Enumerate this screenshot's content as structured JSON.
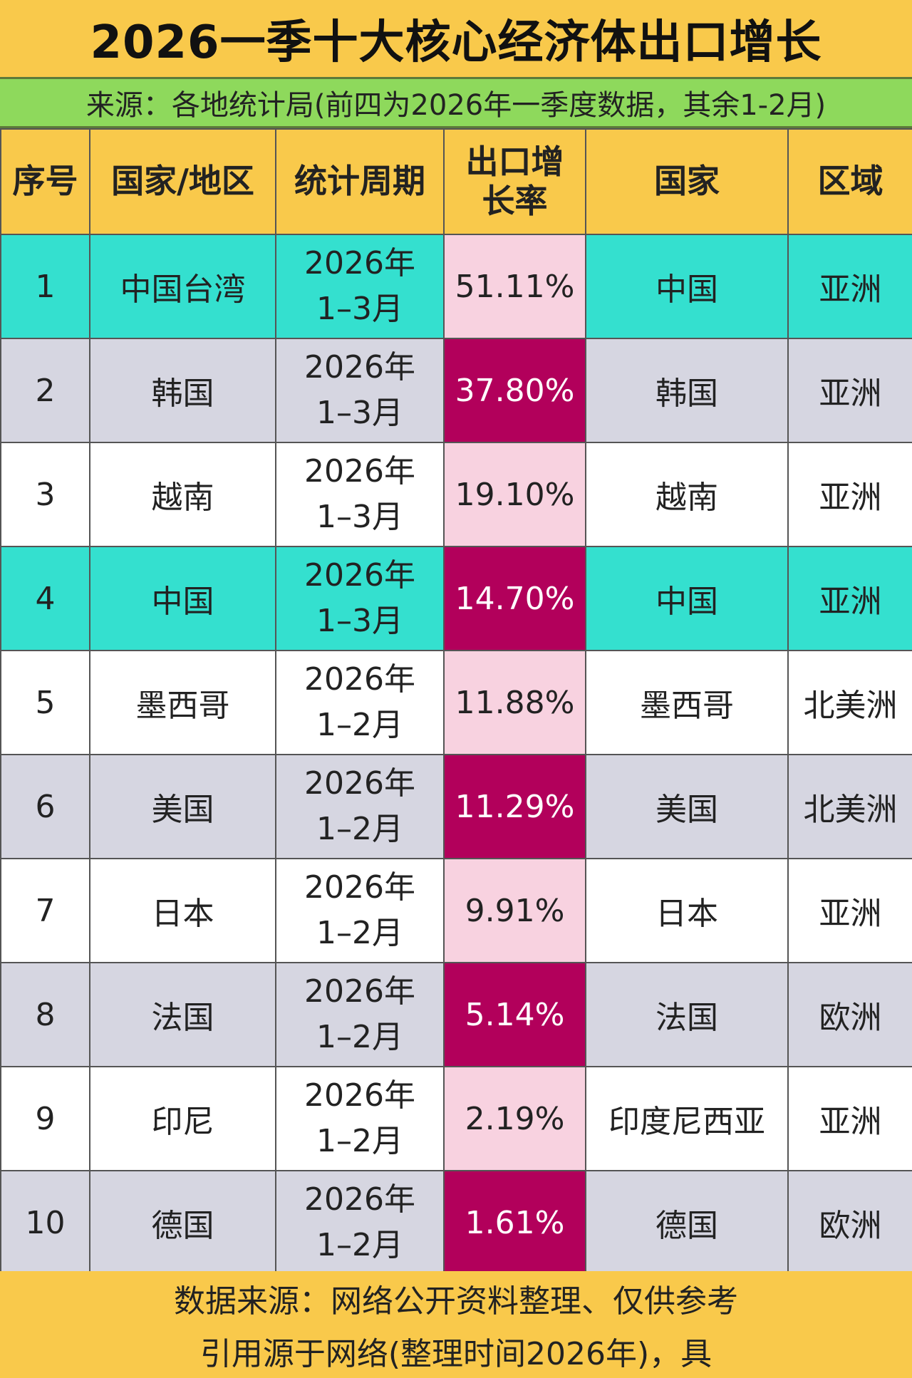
{
  "title": "2026一季十大核心经济体出口增长",
  "subtitle": "来源：各地统计局(前四为2026年一季度数据，其余1-2月)",
  "table": {
    "headers": {
      "index": "序号",
      "region": "国家/地区",
      "period": "统计周期",
      "rate_line1": "出口增",
      "rate_line2": "长率",
      "country": "国家",
      "area": "区域"
    },
    "rows": [
      {
        "index": "1",
        "region": "中国台湾",
        "period_year": "2026年",
        "period_months": "1–3月",
        "rate": "51.11%",
        "country": "中国",
        "area": "亚洲"
      },
      {
        "index": "2",
        "region": "韩国",
        "period_year": "2026年",
        "period_months": "1–3月",
        "rate": "37.80%",
        "country": "韩国",
        "area": "亚洲"
      },
      {
        "index": "3",
        "region": "越南",
        "period_year": "2026年",
        "period_months": "1–3月",
        "rate": "19.10%",
        "country": "越南",
        "area": "亚洲"
      },
      {
        "index": "4",
        "region": "中国",
        "period_year": "2026年",
        "period_months": "1–3月",
        "rate": "14.70%",
        "country": "中国",
        "area": "亚洲"
      },
      {
        "index": "5",
        "region": "墨西哥",
        "period_year": "2026年",
        "period_months": "1–2月",
        "rate": "11.88%",
        "country": "墨西哥",
        "area": "北美洲"
      },
      {
        "index": "6",
        "region": "美国",
        "period_year": "2026年",
        "period_months": "1–2月",
        "rate": "11.29%",
        "country": "美国",
        "area": "北美洲"
      },
      {
        "index": "7",
        "region": "日本",
        "period_year": "2026年",
        "period_months": "1–2月",
        "rate": "9.91%",
        "country": "日本",
        "area": "亚洲"
      },
      {
        "index": "8",
        "region": "法国",
        "period_year": "2026年",
        "period_months": "1–2月",
        "rate": "5.14%",
        "country": "法国",
        "area": "欧洲"
      },
      {
        "index": "9",
        "region": "印尼",
        "period_year": "2026年",
        "period_months": "1–2月",
        "rate": "2.19%",
        "country": "印度尼西亚",
        "area": "亚洲"
      },
      {
        "index": "10",
        "region": "德国",
        "period_year": "2026年",
        "period_months": "1–2月",
        "rate": "1.61%",
        "country": "德国",
        "area": "欧洲"
      }
    ]
  },
  "footer": {
    "line1": "数据来源：网络公开资料整理、仅供参考",
    "line2": "引用源于网络(整理时间2026年)，具"
  },
  "colors": {
    "background": "#F9C94B",
    "subtitle_bg": "#8ED95C",
    "row_teal": "#34E0CF",
    "row_grey": "#D6D6E1",
    "row_white": "#FFFFFF",
    "rate_light": "#F8D2E0",
    "rate_dark": "#B2005B"
  }
}
